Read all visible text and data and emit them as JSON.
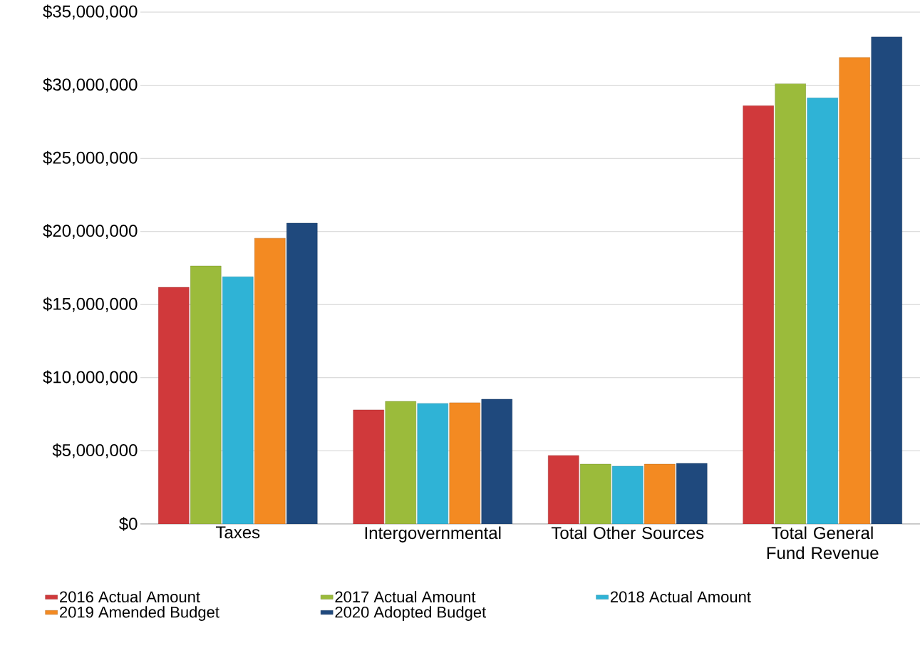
{
  "chart_data": {
    "type": "bar",
    "categories": [
      "Taxes",
      "Intergovernmental",
      "Total Other Sources",
      "Total General Fund Revenue"
    ],
    "series": [
      {
        "name": "2016 Actual Amount",
        "color": "#d0393b",
        "values": [
          16180000,
          7800000,
          4680000,
          28600000
        ]
      },
      {
        "name": "2017 Actual Amount",
        "color": "#9bbb3b",
        "values": [
          17640000,
          8380000,
          4090000,
          30100000
        ]
      },
      {
        "name": "2018 Actual Amount",
        "color": "#2fb3d6",
        "values": [
          16900000,
          8240000,
          3950000,
          29140000
        ]
      },
      {
        "name": "2019 Amended Budget",
        "color": "#f38a22",
        "values": [
          19540000,
          8290000,
          4090000,
          31900000
        ]
      },
      {
        "name": "2020 Adopted Budget",
        "color": "#1f497d",
        "values": [
          20570000,
          8530000,
          4140000,
          33300000
        ]
      }
    ],
    "ylim": [
      0,
      35000000
    ],
    "yticks": [
      {
        "value": 0,
        "label": "$0"
      },
      {
        "value": 5000000,
        "label": "$5,000,000"
      },
      {
        "value": 10000000,
        "label": "$10,000,000"
      },
      {
        "value": 15000000,
        "label": "$15,000,000"
      },
      {
        "value": 20000000,
        "label": "$20,000,000"
      },
      {
        "value": 25000000,
        "label": "$25,000,000"
      },
      {
        "value": 30000000,
        "label": "$30,000,000"
      },
      {
        "value": 35000000,
        "label": "$35,000,000"
      }
    ],
    "grid": "y",
    "legend": "bottom"
  }
}
